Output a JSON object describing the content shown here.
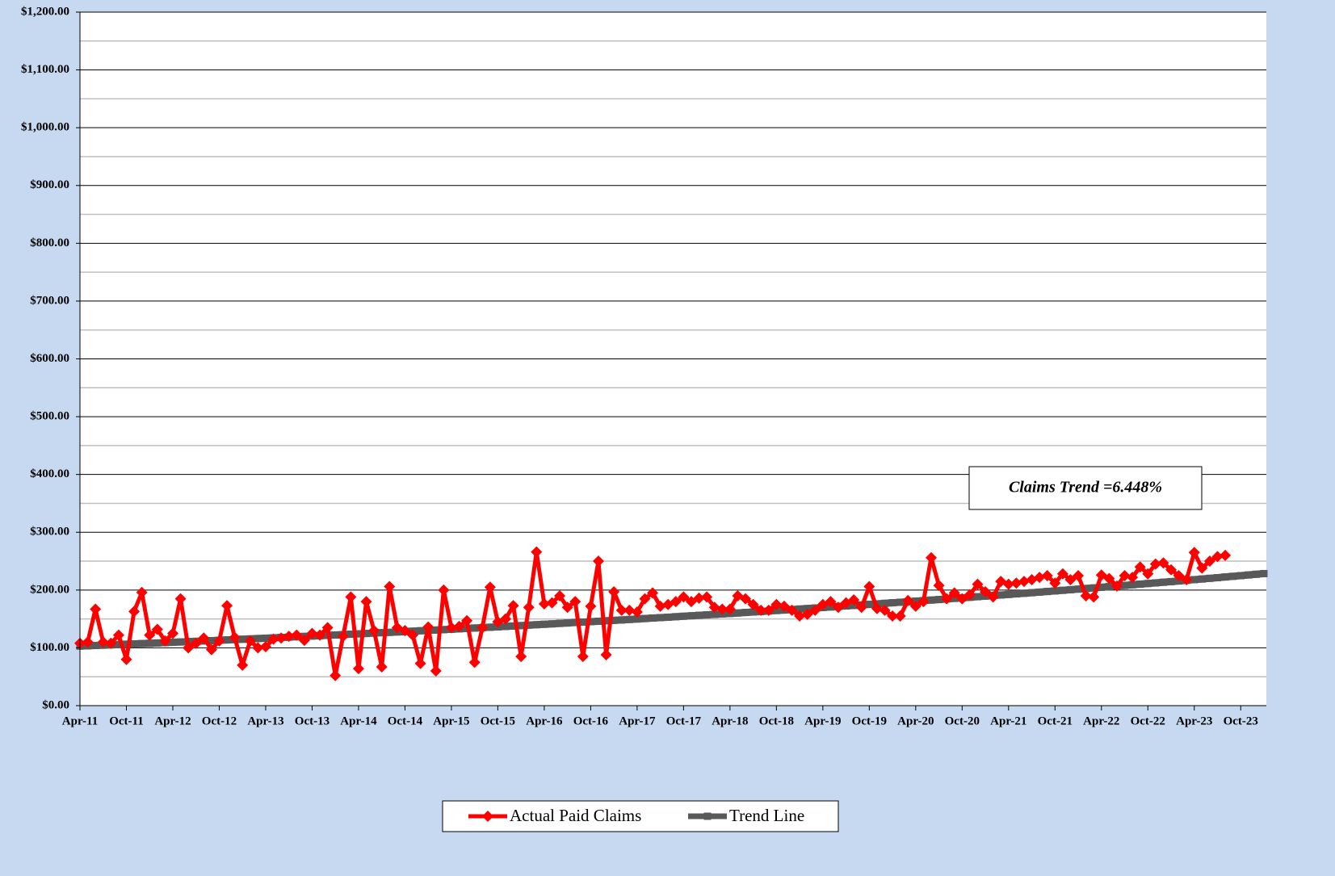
{
  "chart_data": {
    "type": "line",
    "categories": [
      "Apr-11",
      null,
      null,
      null,
      null,
      null,
      "Oct-11",
      null,
      null,
      null,
      null,
      null,
      "Apr-12",
      null,
      null,
      null,
      null,
      null,
      "Oct-12",
      null,
      null,
      null,
      null,
      null,
      "Apr-13",
      null,
      null,
      null,
      null,
      null,
      "Oct-13",
      null,
      null,
      null,
      null,
      null,
      "Apr-14",
      null,
      null,
      null,
      null,
      null,
      "Oct-14",
      null,
      null,
      null,
      null,
      null,
      "Apr-15",
      null,
      null,
      null,
      null,
      null,
      "Oct-15",
      null,
      null,
      null,
      null,
      null,
      "Apr-16",
      null,
      null,
      null,
      null,
      null,
      "Oct-16",
      null,
      null,
      null,
      null,
      null,
      "Apr-17",
      null,
      null,
      null,
      null,
      null,
      "Oct-17",
      null,
      null,
      null,
      null,
      null,
      "Apr-18",
      null,
      null,
      null,
      null,
      null,
      "Oct-18",
      null,
      null,
      null,
      null,
      null,
      "Apr-19",
      null,
      null,
      null,
      null,
      null,
      "Oct-19",
      null,
      null,
      null,
      null,
      null,
      "Apr-20",
      null,
      null,
      null,
      null,
      null,
      "Oct-20",
      null,
      null,
      null,
      null,
      null,
      "Apr-21",
      null,
      null,
      null,
      null,
      null,
      "Oct-21",
      null,
      null,
      null,
      null,
      null,
      "Apr-22",
      null,
      null,
      null,
      null,
      null,
      "Oct-22",
      null,
      null,
      null,
      null,
      null,
      "Apr-23",
      null,
      null,
      null,
      null,
      null,
      "Oct-23",
      null,
      null,
      null
    ],
    "series": [
      {
        "name": "Actual Paid Claims",
        "color": "#ff0000",
        "marker": "diamond",
        "values": [
          108,
          110,
          167,
          110,
          108,
          122,
          80,
          163,
          196,
          122,
          132,
          112,
          125,
          185,
          100,
          108,
          117,
          97,
          112,
          173,
          118,
          70,
          112,
          100,
          102,
          115,
          117,
          120,
          122,
          113,
          125,
          122,
          135,
          52,
          120,
          188,
          64,
          180,
          130,
          67,
          206,
          135,
          130,
          122,
          73,
          136,
          60,
          200,
          135,
          137,
          147,
          75,
          135,
          205,
          145,
          150,
          173,
          85,
          170,
          266,
          176,
          178,
          190,
          170,
          180,
          85,
          172,
          250,
          88,
          197,
          165,
          165,
          162,
          185,
          195,
          172,
          175,
          180,
          188,
          180,
          186,
          188,
          170,
          167,
          167,
          190,
          185,
          175,
          165,
          165,
          175,
          172,
          165,
          155,
          158,
          165,
          175,
          180,
          170,
          178,
          183,
          170,
          206,
          168,
          165,
          155,
          155,
          182,
          172,
          180,
          256,
          208,
          185,
          195,
          185,
          192,
          210,
          197,
          188,
          215,
          210,
          212,
          215,
          218,
          222,
          225,
          212,
          228,
          218,
          225,
          190,
          188,
          226,
          220,
          207,
          225,
          222,
          240,
          228,
          245,
          247,
          235,
          225,
          218,
          265,
          238,
          250,
          258,
          260,
          null,
          null,
          null,
          null,
          null
        ]
      },
      {
        "name": "Trend Line",
        "color": "#595959",
        "marker": "square",
        "values": [
          103.0,
          103.5,
          104.1,
          104.6,
          105.2,
          105.7,
          106.3,
          106.8,
          107.4,
          107.9,
          108.5,
          109.1,
          109.6,
          110.2,
          110.8,
          111.3,
          111.9,
          112.5,
          113.1,
          113.7,
          114.3,
          114.9,
          115.5,
          116.1,
          116.7,
          117.3,
          117.9,
          118.5,
          119.2,
          119.8,
          120.4,
          121.0,
          121.7,
          122.3,
          122.9,
          123.6,
          124.2,
          124.8,
          125.5,
          126.2,
          126.8,
          127.5,
          128.1,
          128.8,
          129.5,
          130.2,
          130.8,
          131.5,
          132.2,
          132.9,
          133.6,
          134.3,
          135.0,
          135.7,
          136.4,
          137.1,
          137.8,
          138.5,
          139.3,
          140.0,
          140.8,
          141.5,
          142.3,
          143.0,
          143.8,
          144.5,
          145.3,
          146.0,
          146.8,
          147.6,
          148.3,
          149.1,
          149.9,
          150.7,
          151.5,
          152.3,
          153.0,
          153.9,
          154.7,
          155.5,
          156.3,
          157.1,
          157.9,
          158.7,
          159.5,
          160.3,
          161.2,
          162.0,
          162.8,
          163.7,
          164.6,
          165.4,
          166.3,
          167.2,
          168.0,
          168.9,
          169.8,
          170.7,
          171.6,
          172.5,
          173.4,
          174.3,
          175.2,
          176.1,
          177.0,
          178.0,
          178.9,
          179.8,
          180.8,
          181.7,
          182.7,
          183.6,
          184.6,
          185.6,
          186.5,
          187.5,
          188.5,
          189.5,
          190.5,
          191.4,
          192.4,
          193.4,
          194.4,
          195.4,
          196.4,
          197.5,
          198.5,
          199.5,
          200.6,
          201.6,
          202.7,
          203.7,
          204.8,
          205.9,
          207.0,
          208.0,
          209.1,
          210.2,
          211.3,
          212.4,
          213.5,
          214.6,
          215.7,
          216.9,
          218.0,
          219.1,
          220.3,
          221.4,
          222.6,
          223.8,
          224.9,
          226.1,
          227.3,
          228.5
        ]
      }
    ],
    "ylim": [
      0,
      1200
    ],
    "yticks": [
      {
        "value": 0,
        "label": "$0.00"
      },
      {
        "value": 100,
        "label": "$100.00"
      },
      {
        "value": 200,
        "label": "$200.00"
      },
      {
        "value": 300,
        "label": "$300.00"
      },
      {
        "value": 400,
        "label": "$400.00"
      },
      {
        "value": 500,
        "label": "$500.00"
      },
      {
        "value": 600,
        "label": "$600.00"
      },
      {
        "value": 700,
        "label": "$700.00"
      },
      {
        "value": 800,
        "label": "$800.00"
      },
      {
        "value": 900,
        "label": "$900.00"
      },
      {
        "value": 1000,
        "label": "$1,000.00"
      },
      {
        "value": 1100,
        "label": "$1,100.00"
      },
      {
        "value": 1200,
        "label": "$1,200.00"
      }
    ],
    "grid": true,
    "annotation": "Claims Trend =6.448%",
    "legend": "bottom"
  }
}
